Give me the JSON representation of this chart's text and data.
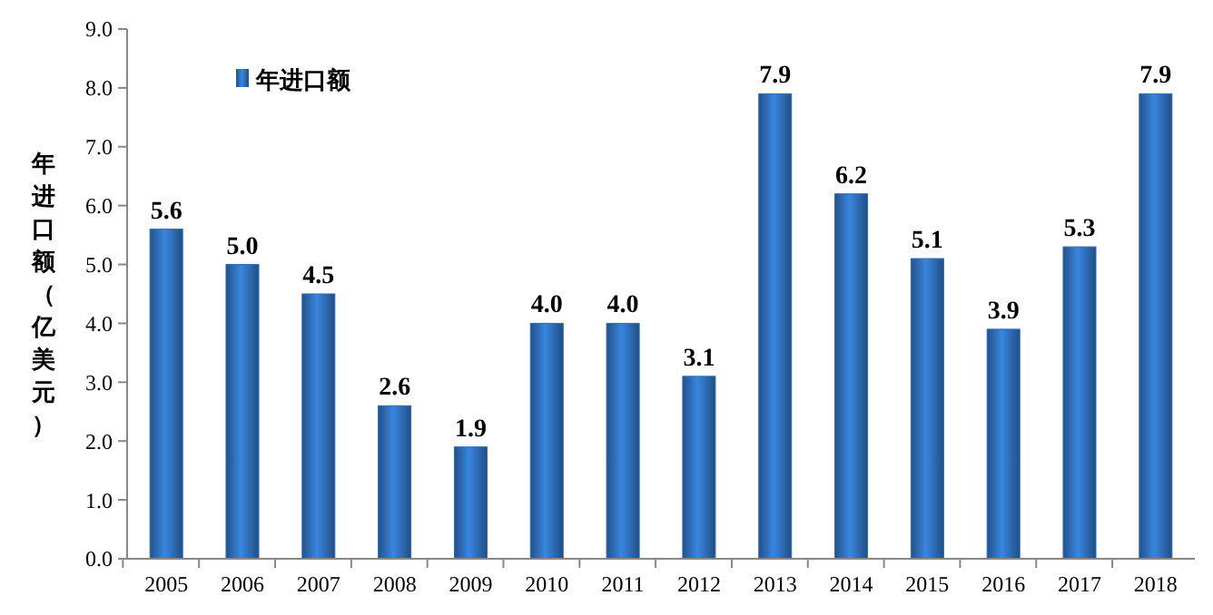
{
  "chart_data": {
    "type": "bar",
    "ylabel": "年进口额（亿美元）",
    "categories": [
      "2005",
      "2006",
      "2007",
      "2008",
      "2009",
      "2010",
      "2011",
      "2012",
      "2013",
      "2014",
      "2015",
      "2016",
      "2017",
      "2018"
    ],
    "series": [
      {
        "name": "年进口额",
        "color": "#2e6cb5",
        "values": [
          5.6,
          5.0,
          4.5,
          2.6,
          1.9,
          4.0,
          4.0,
          3.1,
          7.9,
          6.2,
          5.1,
          3.9,
          5.3,
          7.9
        ]
      }
    ],
    "value_labels": [
      "5.6",
      "5.0",
      "4.5",
      "2.6",
      "1.9",
      "4.0",
      "4.0",
      "3.1",
      "7.9",
      "6.2",
      "5.1",
      "3.9",
      "5.3",
      "7.9"
    ],
    "ylim": [
      0,
      9
    ],
    "yticks": [
      {
        "value": 0,
        "label": "0.0"
      },
      {
        "value": 1,
        "label": "1.0"
      },
      {
        "value": 2,
        "label": "2.0"
      },
      {
        "value": 3,
        "label": "3.0"
      },
      {
        "value": 4,
        "label": "4.0"
      },
      {
        "value": 5,
        "label": "5.0"
      },
      {
        "value": 6,
        "label": "6.0"
      },
      {
        "value": 7,
        "label": "7.0"
      },
      {
        "value": 8,
        "label": "8.0"
      },
      {
        "value": 9,
        "label": "9.0"
      }
    ],
    "grid": false,
    "legend": "top left"
  }
}
